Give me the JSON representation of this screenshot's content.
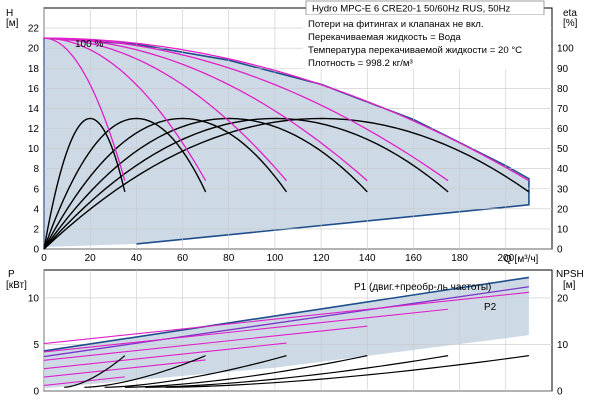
{
  "chart_data": [
    {
      "type": "line",
      "title": "Hydro MPC-E 6 CRE20-1 50/60Hz RUS, 50Hz",
      "notes": [
        "Потери на фитингах и клапанах не вкл.",
        "Перекачиваемая жидкость = Вода",
        "Температура перекачиваемой жидкости = 20 °C",
        "Плотность = 998.2 кг/м³"
      ],
      "xlabel": "Q [м³/ч]",
      "xlim": [
        0,
        220
      ],
      "x_ticks": [
        0,
        20,
        40,
        60,
        80,
        100,
        120,
        140,
        160,
        180,
        200
      ],
      "y_left": {
        "label": "H",
        "unit": "[м]",
        "lim": [
          0,
          24
        ],
        "ticks": [
          0,
          2,
          4,
          6,
          8,
          10,
          12,
          14,
          16,
          18,
          20,
          22
        ]
      },
      "y_right": {
        "label": "eta",
        "unit": "[%]",
        "lim": [
          0,
          120
        ],
        "ticks": [
          0,
          10,
          20,
          30,
          40,
          50,
          60,
          70,
          80,
          90,
          100
        ]
      },
      "annotation": "100 %",
      "speed_series": [
        {
          "pumps": 1,
          "qmax": 35,
          "hmin": 6.8
        },
        {
          "pumps": 2,
          "qmax": 70,
          "hmin": 6.8
        },
        {
          "pumps": 3,
          "qmax": 105,
          "hmin": 6.8
        },
        {
          "pumps": 4,
          "qmax": 140,
          "hmin": 6.8
        },
        {
          "pumps": 5,
          "qmax": 175,
          "hmin": 6.8
        },
        {
          "pumps": 6,
          "qmax": 210,
          "hmin": 6.8
        }
      ],
      "h_max": 21,
      "envelope": {
        "x": [
          0,
          40,
          80,
          120,
          160,
          200,
          210
        ],
        "y": [
          21,
          20.4,
          18.8,
          16.4,
          12.9,
          8.3,
          7.0
        ]
      },
      "efficiency_series": [
        {
          "peak_q": 20,
          "peak_eta": 65,
          "end_q": 35
        },
        {
          "peak_q": 40,
          "peak_eta": 65,
          "end_q": 70
        },
        {
          "peak_q": 60,
          "peak_eta": 65,
          "end_q": 105
        },
        {
          "peak_q": 80,
          "peak_eta": 65,
          "end_q": 140
        },
        {
          "peak_q": 100,
          "peak_eta": 65,
          "end_q": 175
        },
        {
          "peak_q": 120,
          "peak_eta": 65,
          "end_q": 210
        }
      ],
      "colors": {
        "speed": "#e020c8",
        "curve": "#000000",
        "envelope": "#1f4e8c",
        "area": "#c8d6e3"
      }
    },
    {
      "type": "line",
      "xlabel": "Q [м³/ч]",
      "xlim": [
        0,
        220
      ],
      "y_left": {
        "label": "P",
        "unit": "[кВт]",
        "lim": [
          0,
          13
        ],
        "ticks": [
          0,
          5,
          10
        ]
      },
      "y_right": {
        "label": "NPSH",
        "unit": "[м]",
        "lim": [
          0,
          26
        ],
        "ticks": [
          0,
          10,
          20
        ]
      },
      "labels": [
        "P1 (двиг.+преобр-ль частоты)",
        "P2"
      ],
      "p1": {
        "x": [
          0,
          210
        ],
        "y": [
          4.3,
          12.2
        ]
      },
      "p2": {
        "x": [
          0,
          210
        ],
        "y": [
          3.7,
          11.2
        ]
      },
      "npsh": [
        {
          "q_end": 35,
          "value": 3.8
        },
        {
          "q_end": 70,
          "value": 3.8
        },
        {
          "q_end": 105,
          "value": 3.8
        },
        {
          "q_end": 140,
          "value": 3.8
        },
        {
          "q_end": 175,
          "value": 3.8
        },
        {
          "q_end": 210,
          "value": 3.8
        }
      ],
      "colors": {
        "p1": "#1f4e8c",
        "p2": "#7a35c8",
        "speed": "#e020c8",
        "npsh": "#000000",
        "area": "#c8d6e3"
      }
    }
  ]
}
